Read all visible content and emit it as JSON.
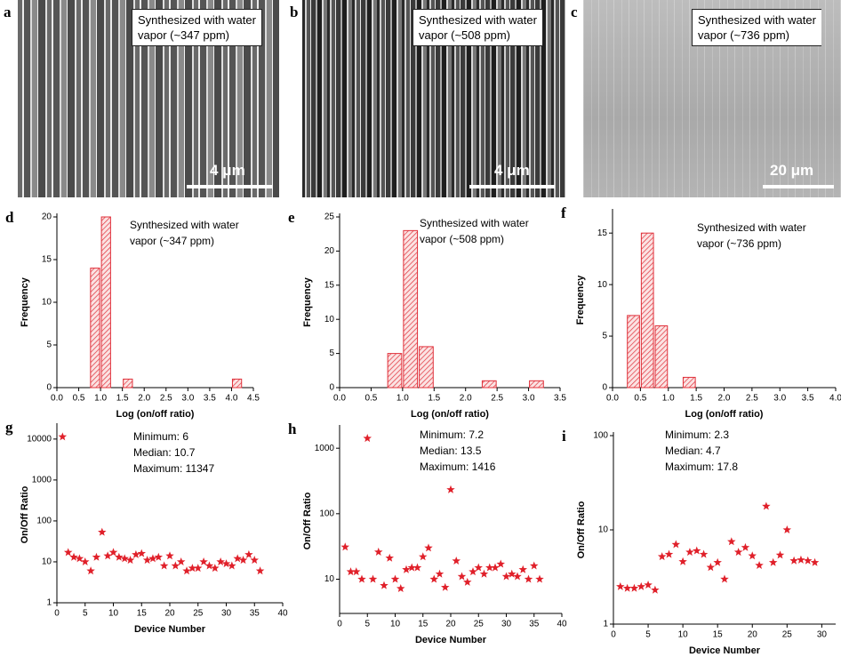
{
  "images": [
    {
      "panel": "a",
      "caption": [
        "Synthesized with water",
        "vapor (~347 ppm)"
      ],
      "scale_bar": "4 μm"
    },
    {
      "panel": "b",
      "caption": [
        "Synthesized with water",
        "vapor (~508 ppm)"
      ],
      "scale_bar": "4 μm"
    },
    {
      "panel": "c",
      "caption": [
        "Synthesized with water",
        "vapor (~736 ppm)"
      ],
      "scale_bar": "20 μm"
    }
  ],
  "chart_data": [
    {
      "type": "histogram",
      "panel": "d",
      "annotation": [
        "Synthesized with water",
        "vapor (~347 ppm)"
      ],
      "x_label": "Log (on/off ratio)",
      "y_label": "Frequency",
      "color": "#e0303a",
      "bins": [
        0.75,
        1.0,
        1.25,
        1.5,
        1.75,
        2.0,
        2.25,
        2.5,
        2.75,
        3.0,
        3.25,
        3.5,
        3.75,
        4.0,
        4.25
      ],
      "values": [
        14,
        20,
        0,
        1,
        0,
        0,
        0,
        0,
        0,
        0,
        0,
        0,
        0,
        1
      ],
      "xlim": [
        0,
        4.5
      ],
      "xticks": [
        {
          "value": 0,
          "label": "0.0"
        },
        {
          "value": 0.5,
          "label": "0.5"
        },
        {
          "value": 1,
          "label": "1.0"
        },
        {
          "value": 1.5,
          "label": "1.5"
        },
        {
          "value": 2,
          "label": "2.0"
        },
        {
          "value": 2.5,
          "label": "2.5"
        },
        {
          "value": 3,
          "label": "3.0"
        },
        {
          "value": 3.5,
          "label": "3.5"
        },
        {
          "value": 4,
          "label": "4.0"
        },
        {
          "value": 4.5,
          "label": "4.5"
        }
      ],
      "ylim": [
        0,
        20
      ],
      "yticks": [
        0,
        5,
        10,
        15,
        20
      ]
    },
    {
      "type": "histogram",
      "panel": "e",
      "annotation": [
        "Synthesized with water",
        "vapor (~508 ppm)"
      ],
      "x_label": "Log (on/off ratio)",
      "y_label": "Frequency",
      "color": "#e0303a",
      "bins": [
        0.75,
        1.0,
        1.25,
        1.5,
        1.75,
        2.0,
        2.25,
        2.5,
        2.75,
        3.0,
        3.25
      ],
      "values": [
        5,
        23,
        6,
        0,
        0,
        0,
        1,
        0,
        0,
        1
      ],
      "xlim": [
        0,
        3.5
      ],
      "xticks": [
        {
          "value": 0,
          "label": "0.0"
        },
        {
          "value": 0.5,
          "label": "0.5"
        },
        {
          "value": 1,
          "label": "1.0"
        },
        {
          "value": 1.5,
          "label": "1.5"
        },
        {
          "value": 2,
          "label": "2.0"
        },
        {
          "value": 2.5,
          "label": "2.5"
        },
        {
          "value": 3,
          "label": "3.0"
        },
        {
          "value": 3.5,
          "label": "3.5"
        }
      ],
      "ylim": [
        0,
        25
      ],
      "yticks": [
        0,
        5,
        10,
        15,
        20,
        25
      ]
    },
    {
      "type": "histogram",
      "panel": "f",
      "annotation": [
        "Synthesized with water",
        "vapor (~736 ppm)"
      ],
      "x_label": "Log (on/off ratio)",
      "y_label": "Frequency",
      "color": "#e0303a",
      "bins": [
        0.25,
        0.5,
        0.75,
        1.0,
        1.25,
        1.5
      ],
      "values": [
        7,
        15,
        6,
        0,
        1
      ],
      "xlim": [
        0,
        4
      ],
      "xticks": [
        {
          "value": 0,
          "label": "0.0"
        },
        {
          "value": 0.5,
          "label": "0.5"
        },
        {
          "value": 1,
          "label": "1.0"
        },
        {
          "value": 1.5,
          "label": "1.5"
        },
        {
          "value": 2,
          "label": "2.0"
        },
        {
          "value": 2.5,
          "label": "2.5"
        },
        {
          "value": 3,
          "label": "3.0"
        },
        {
          "value": 3.5,
          "label": "3.5"
        },
        {
          "value": 4,
          "label": "4.0"
        }
      ],
      "ylim": [
        0,
        17
      ],
      "yticks": [
        0,
        5,
        10,
        15
      ]
    },
    {
      "type": "scatter",
      "panel": "g",
      "annotation": [
        "Minimum: 6",
        "Median: 10.7",
        "Maximum: 11347"
      ],
      "x_label": "Device Number",
      "y_label": "On/Off Ratio",
      "color": "#e0202a",
      "yscale": "log",
      "x": [
        1,
        2,
        3,
        4,
        5,
        6,
        7,
        8,
        9,
        10,
        11,
        12,
        13,
        14,
        15,
        16,
        17,
        18,
        19,
        20,
        21,
        22,
        23,
        24,
        25,
        26,
        27,
        28,
        29,
        30,
        31,
        32,
        33,
        34,
        35,
        36
      ],
      "values": [
        11347,
        17,
        13,
        12,
        10,
        6,
        13,
        53,
        14,
        17,
        13,
        12,
        11,
        15,
        16,
        11,
        12,
        13,
        8,
        14,
        8,
        10,
        6,
        7,
        7,
        10,
        8,
        7,
        10,
        9,
        8,
        12,
        11,
        15,
        11,
        6
      ],
      "xlim": [
        0,
        40
      ],
      "xticks": [
        0,
        5,
        10,
        15,
        20,
        25,
        30,
        35,
        40
      ],
      "ylim": [
        1,
        20000
      ],
      "yticks": [
        1,
        10,
        100,
        1000,
        10000
      ]
    },
    {
      "type": "scatter",
      "panel": "h",
      "annotation": [
        "Minimum: 7.2",
        "Median: 13.5",
        "Maximum: 1416"
      ],
      "x_label": "Device Number",
      "y_label": "On/Off Ratio",
      "color": "#e0202a",
      "yscale": "log",
      "x": [
        1,
        2,
        3,
        4,
        5,
        6,
        7,
        8,
        9,
        10,
        11,
        12,
        13,
        14,
        15,
        16,
        17,
        18,
        19,
        20,
        21,
        22,
        23,
        24,
        25,
        26,
        27,
        28,
        29,
        30,
        31,
        32,
        33,
        34,
        35,
        36
      ],
      "values": [
        31,
        13,
        13,
        10,
        1416,
        10,
        26,
        8,
        21,
        10,
        7.2,
        14,
        15,
        15,
        22,
        30,
        10,
        12,
        7.5,
        233,
        19,
        11,
        9,
        13,
        15,
        12,
        15,
        15,
        17,
        11,
        12,
        11,
        14,
        10,
        16,
        10
      ],
      "xlim": [
        0,
        40
      ],
      "xticks": [
        0,
        5,
        10,
        15,
        20,
        25,
        30,
        35,
        40
      ],
      "ylim": [
        3,
        2000
      ],
      "yticks": [
        10,
        100,
        1000
      ]
    },
    {
      "type": "scatter",
      "panel": "i",
      "annotation": [
        "Minimum: 2.3",
        "Median: 4.7",
        "Maximum: 17.8"
      ],
      "x_label": "Device Number",
      "y_label": "On/Off Ratio",
      "color": "#e0202a",
      "yscale": "log",
      "x": [
        1,
        2,
        3,
        4,
        5,
        6,
        7,
        8,
        9,
        10,
        11,
        12,
        13,
        14,
        15,
        16,
        17,
        18,
        19,
        20,
        21,
        22,
        23,
        24,
        25,
        26,
        27,
        28,
        29
      ],
      "values": [
        2.5,
        2.4,
        2.4,
        2.5,
        2.6,
        2.3,
        5.2,
        5.5,
        7,
        4.6,
        5.8,
        6,
        5.5,
        4,
        4.5,
        3,
        7.5,
        5.8,
        6.5,
        5.3,
        4.2,
        17.8,
        4.5,
        5.4,
        10,
        4.7,
        4.8,
        4.7,
        4.5
      ],
      "xlim": [
        0,
        32
      ],
      "xticks": [
        0,
        5,
        10,
        15,
        20,
        25,
        30
      ],
      "ylim": [
        1,
        100
      ],
      "yticks": [
        1,
        10,
        100
      ]
    }
  ]
}
